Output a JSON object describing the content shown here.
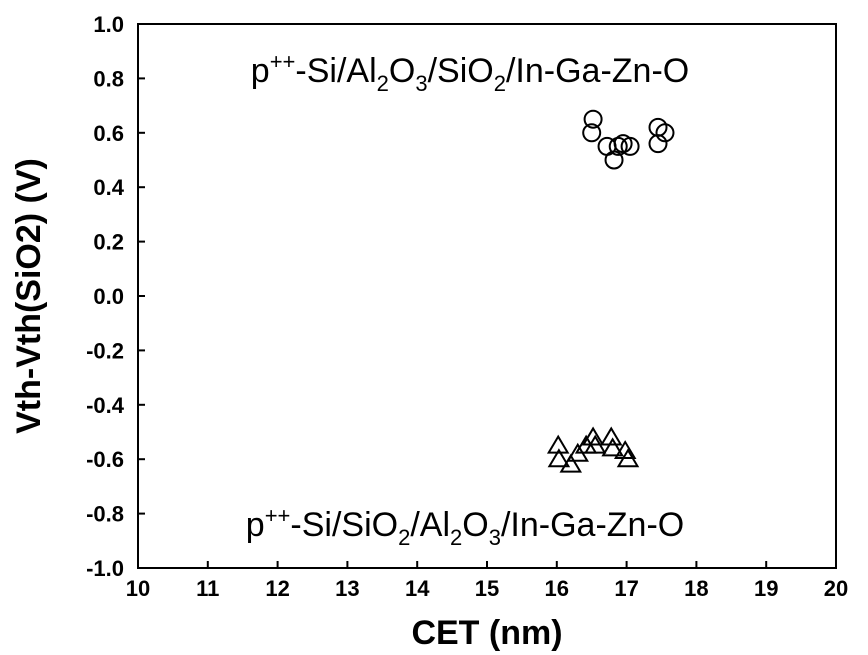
{
  "chart_data": {
    "type": "scatter",
    "title": "",
    "xlabel": "CET (nm)",
    "ylabel": "Vth-Vth(SiO2) (V)",
    "xlim": [
      10,
      20
    ],
    "ylim": [
      -1.0,
      1.0
    ],
    "x_ticks": [
      "10",
      "11",
      "12",
      "13",
      "14",
      "15",
      "16",
      "17",
      "18",
      "19",
      "20"
    ],
    "y_ticks": [
      "1.0",
      "0.8",
      "0.6",
      "0.4",
      "0.2",
      "0.0",
      "-0.2",
      "-0.4",
      "-0.6",
      "-0.8",
      "-1.0"
    ],
    "grid": false,
    "legend": "none",
    "annotations": [
      {
        "text": "p⁺⁺-Si/Al₂O₃/SiO₂/In-Ga-Zn-O"
      },
      {
        "text": "p⁺⁺-Si/SiO₂/Al₂O₃/In-Ga-Zn-O"
      }
    ],
    "series": [
      {
        "marker": "circle",
        "points": [
          {
            "x": 16.52,
            "y": 0.65
          },
          {
            "x": 16.5,
            "y": 0.6
          },
          {
            "x": 16.72,
            "y": 0.55
          },
          {
            "x": 16.82,
            "y": 0.5
          },
          {
            "x": 16.88,
            "y": 0.55
          },
          {
            "x": 16.95,
            "y": 0.56
          },
          {
            "x": 17.05,
            "y": 0.55
          },
          {
            "x": 17.45,
            "y": 0.62
          },
          {
            "x": 17.45,
            "y": 0.56
          },
          {
            "x": 17.55,
            "y": 0.6
          }
        ]
      },
      {
        "marker": "triangle",
        "points": [
          {
            "x": 16.02,
            "y": -0.55
          },
          {
            "x": 16.03,
            "y": -0.6
          },
          {
            "x": 16.2,
            "y": -0.62
          },
          {
            "x": 16.3,
            "y": -0.58
          },
          {
            "x": 16.42,
            "y": -0.55
          },
          {
            "x": 16.52,
            "y": -0.52
          },
          {
            "x": 16.55,
            "y": -0.55
          },
          {
            "x": 16.78,
            "y": -0.52
          },
          {
            "x": 16.8,
            "y": -0.56
          },
          {
            "x": 16.98,
            "y": -0.57
          },
          {
            "x": 17.02,
            "y": -0.6
          }
        ]
      }
    ]
  }
}
